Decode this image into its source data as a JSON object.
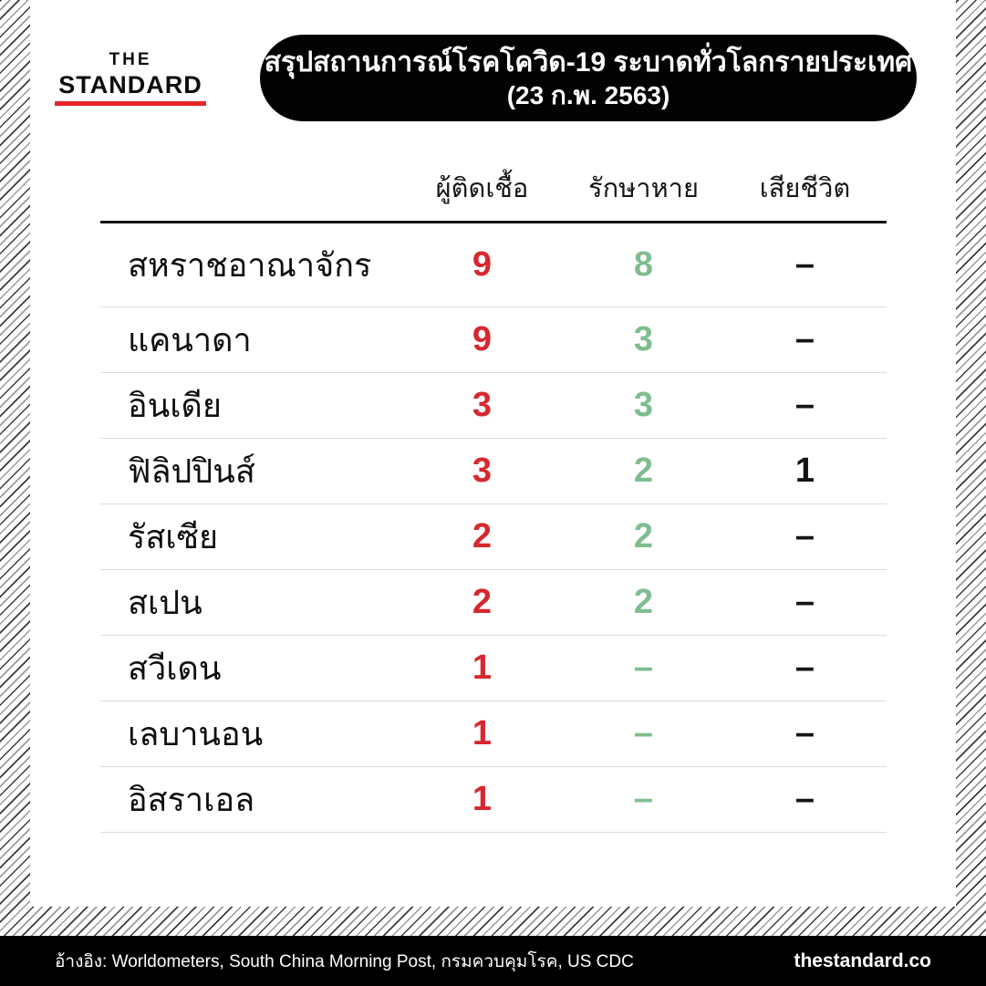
{
  "brand": {
    "line1": "THE",
    "line2": "STANDARD"
  },
  "header": {
    "title_line1": "สรุปสถานการณ์โรคโควิด-19 ระบาดทั่วโลกรายประเทศ",
    "title_line2": "(23 ก.พ. 2563)"
  },
  "chart_data": {
    "type": "table",
    "title": "สรุปสถานการณ์โรคโควิด-19 ระบาดทั่วโลกรายประเทศ (23 ก.พ. 2563)",
    "columns": [
      "ผู้ติดเชื้อ",
      "รักษาหาย",
      "เสียชีวิต"
    ],
    "rows": [
      {
        "country": "สหราชอาณาจักร",
        "infected": 9,
        "recovered": 8,
        "deaths": null
      },
      {
        "country": "แคนาดา",
        "infected": 9,
        "recovered": 3,
        "deaths": null
      },
      {
        "country": "อินเดีย",
        "infected": 3,
        "recovered": 3,
        "deaths": null
      },
      {
        "country": "ฟิลิปปินส์",
        "infected": 3,
        "recovered": 2,
        "deaths": 1
      },
      {
        "country": "รัสเซีย",
        "infected": 2,
        "recovered": 2,
        "deaths": null
      },
      {
        "country": "สเปน",
        "infected": 2,
        "recovered": 2,
        "deaths": null
      },
      {
        "country": "สวีเดน",
        "infected": 1,
        "recovered": null,
        "deaths": null
      },
      {
        "country": "เลบานอน",
        "infected": 1,
        "recovered": null,
        "deaths": null
      },
      {
        "country": "อิสราเอล",
        "infected": 1,
        "recovered": null,
        "deaths": null
      }
    ]
  },
  "display": {
    "dash": "–"
  },
  "colors": {
    "infected": "#d7272e",
    "recovered": "#7fbd90",
    "deaths": "#141414",
    "brand_red": "#e8262a",
    "pill_bg": "#030303",
    "footer_bg": "#000000"
  },
  "footer": {
    "source": "อ้างอิง: Worldometers, South China Morning Post, กรมควบคุมโรค, US CDC",
    "site": "thestandard.co"
  }
}
